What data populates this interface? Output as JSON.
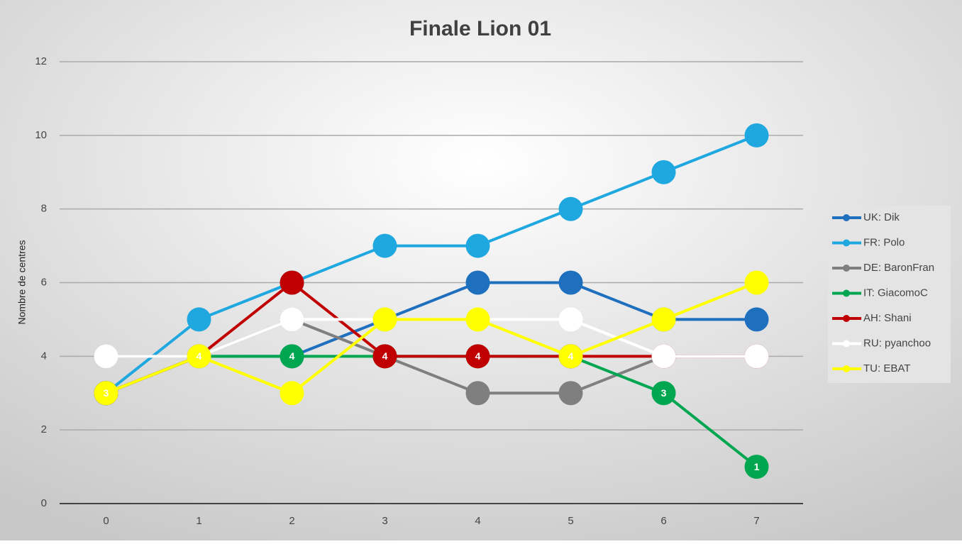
{
  "chart_data": {
    "type": "line",
    "title": "Finale Lion 01",
    "y_label": "Nombre de centres",
    "x": [
      0,
      1,
      2,
      3,
      4,
      5,
      6,
      7
    ],
    "xlim": [
      -0.5,
      7.5
    ],
    "xticks": [
      0,
      1,
      2,
      3,
      4,
      5,
      6,
      7
    ],
    "ylim": [
      0,
      12
    ],
    "yticks": [
      0,
      2,
      4,
      6,
      8,
      10,
      12
    ],
    "grid": true,
    "legend": "right",
    "series": [
      {
        "name": "UK: Dik",
        "color": "#1f6fbf",
        "values": [
          3,
          4,
          4,
          5,
          6,
          6,
          5,
          5
        ]
      },
      {
        "name": "FR: Polo",
        "color": "#1fa8e0",
        "values": [
          3,
          5,
          6,
          7,
          7,
          8,
          9,
          10
        ]
      },
      {
        "name": "DE: BaronFran",
        "color": "#7f7f7f",
        "values": [
          4,
          4,
          5,
          4,
          3,
          3,
          4,
          4
        ]
      },
      {
        "name": "IT: GiacomoC",
        "color": "#00a650",
        "values": [
          3,
          4,
          4,
          4,
          4,
          4,
          3,
          1
        ],
        "data_labels": true
      },
      {
        "name": "AH: Shani",
        "color": "#c00000",
        "values": [
          3,
          4,
          6,
          4,
          4,
          4,
          4,
          4
        ]
      },
      {
        "name": "RU: pyanchoo",
        "color": "#ffffff",
        "values": [
          4,
          4,
          5,
          5,
          5,
          5,
          4,
          4
        ]
      },
      {
        "name": "TU: EBAT",
        "color": "#ffff00",
        "values": [
          3,
          4,
          3,
          5,
          5,
          4,
          5,
          6
        ]
      }
    ]
  }
}
